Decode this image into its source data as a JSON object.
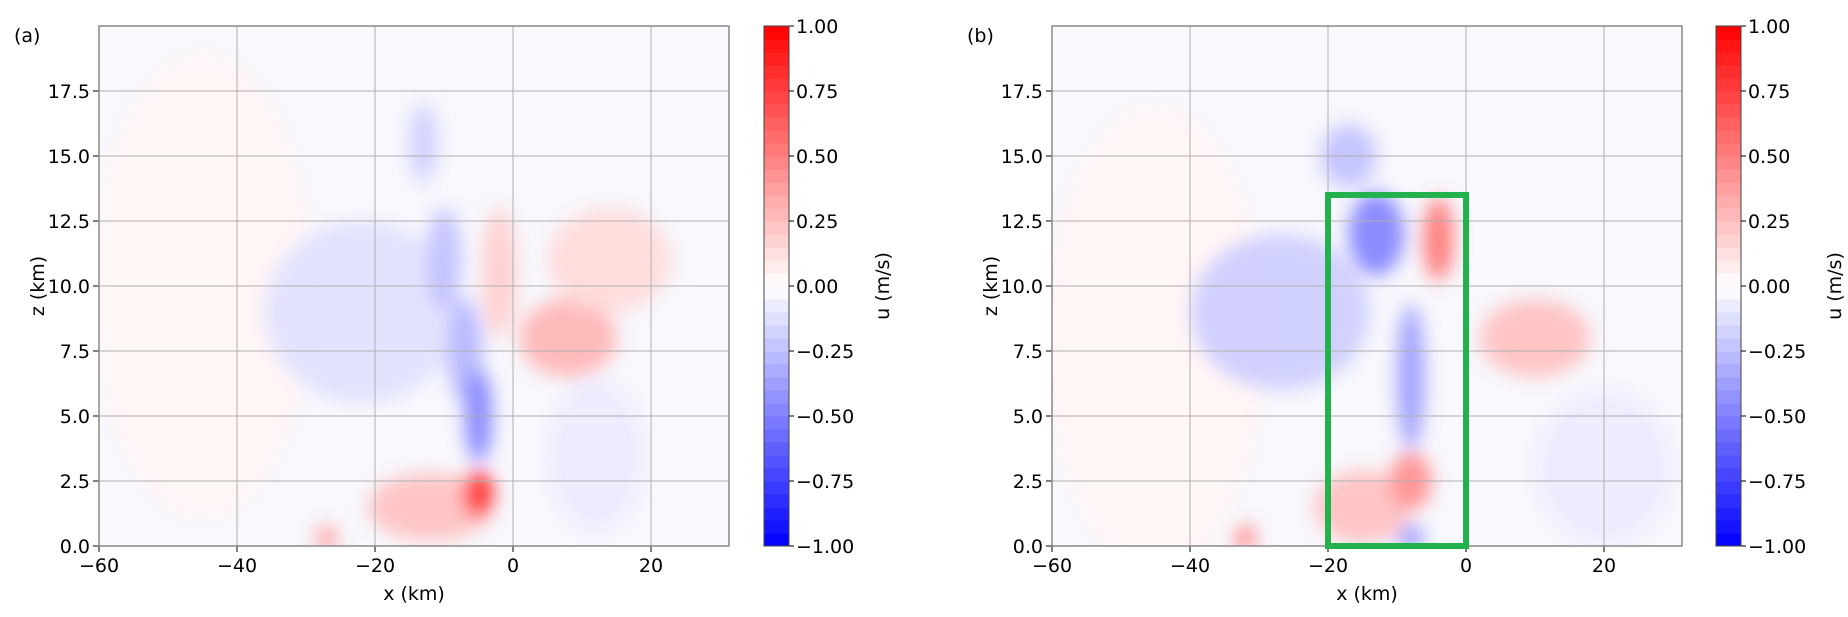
{
  "chart_data": [
    {
      "type": "heatmap",
      "panel_label": "(a)",
      "xlabel": "x (km)",
      "ylabel": "z (km)",
      "xlim": [
        -60,
        31.3
      ],
      "ylim": [
        0,
        20
      ],
      "xticks": [
        "-60",
        "-40",
        "-20",
        "0",
        "20"
      ],
      "yticks": [
        "0.0",
        "2.5",
        "5.0",
        "7.5",
        "10.0",
        "12.5",
        "15.0",
        "17.5"
      ],
      "grid": true,
      "colormap": "bwr",
      "colorbar": {
        "label": "u (m/s)",
        "range": [
          -1,
          1
        ],
        "ticks": [
          "-1.00",
          "-0.75",
          "-0.50",
          "-0.25",
          "0.00",
          "0.25",
          "0.50",
          "0.75",
          "1.00"
        ]
      },
      "features": [
        {
          "x": -45,
          "z": 10,
          "rx": 16,
          "rz": 9,
          "u": 0.04
        },
        {
          "x": -22,
          "z": 9,
          "rx": 14,
          "rz": 3.5,
          "u": -0.12
        },
        {
          "x": 12,
          "z": 3.5,
          "rx": 7,
          "rz": 3,
          "u": -0.08
        },
        {
          "x": -12,
          "z": 1.5,
          "rx": 9,
          "rz": 1.3,
          "u": 0.25
        },
        {
          "x": 8,
          "z": 8,
          "rx": 7,
          "rz": 1.5,
          "u": 0.3
        },
        {
          "x": 14,
          "z": 11,
          "rx": 9,
          "rz": 2,
          "u": 0.15
        },
        {
          "x": -2,
          "z": 10.5,
          "rx": 2.5,
          "rz": 2.5,
          "u": 0.2
        },
        {
          "x": -10,
          "z": 11,
          "rx": 2.5,
          "rz": 2,
          "u": -0.25
        },
        {
          "x": -7,
          "z": 7.5,
          "rx": 2.5,
          "rz": 2,
          "u": -0.3
        },
        {
          "x": -5,
          "z": 5,
          "rx": 2,
          "rz": 1.8,
          "u": -0.5
        },
        {
          "x": -13,
          "z": 15.5,
          "rx": 2,
          "rz": 1.5,
          "u": -0.2
        },
        {
          "x": -5,
          "z": 2,
          "rx": 2.2,
          "rz": 0.9,
          "u": 0.85
        },
        {
          "x": -27,
          "z": 0.3,
          "rx": 1.5,
          "rz": 0.5,
          "u": 0.4
        }
      ]
    },
    {
      "type": "heatmap",
      "panel_label": "(b)",
      "xlabel": "x (km)",
      "ylabel": "z (km)",
      "xlim": [
        -60,
        31.3
      ],
      "ylim": [
        0,
        20
      ],
      "xticks": [
        "-60",
        "-40",
        "-20",
        "0",
        "20"
      ],
      "yticks": [
        "0.0",
        "2.5",
        "5.0",
        "7.5",
        "10.0",
        "12.5",
        "15.0",
        "17.5"
      ],
      "grid": true,
      "colormap": "bwr",
      "colorbar": {
        "label": "u (m/s)",
        "range": [
          -1,
          1
        ],
        "ticks": [
          "-1.00",
          "-0.75",
          "-0.50",
          "-0.25",
          "0.00",
          "0.25",
          "0.50",
          "0.75",
          "1.00"
        ]
      },
      "highlight_box": {
        "x": [
          -20,
          0
        ],
        "z": [
          0,
          13.5
        ],
        "color": "#22b14c"
      },
      "features": [
        {
          "x": -45,
          "z": 8,
          "rx": 16,
          "rz": 9,
          "u": 0.04
        },
        {
          "x": -27,
          "z": 9,
          "rx": 13,
          "rz": 3,
          "u": -0.2
        },
        {
          "x": 20,
          "z": 3,
          "rx": 10,
          "rz": 3,
          "u": -0.08
        },
        {
          "x": -15,
          "z": 1.5,
          "rx": 7,
          "rz": 1.4,
          "u": 0.25
        },
        {
          "x": 10,
          "z": 8,
          "rx": 8,
          "rz": 1.5,
          "u": 0.25
        },
        {
          "x": -13,
          "z": 12,
          "rx": 4,
          "rz": 1.6,
          "u": -0.5
        },
        {
          "x": -4,
          "z": 11.8,
          "rx": 2.2,
          "rz": 1.6,
          "u": 0.55
        },
        {
          "x": -8,
          "z": 6.5,
          "rx": 2,
          "rz": 2.8,
          "u": -0.4
        },
        {
          "x": -8,
          "z": 2.5,
          "rx": 3,
          "rz": 1.1,
          "u": 0.45
        },
        {
          "x": -32,
          "z": 0.3,
          "rx": 1.5,
          "rz": 0.5,
          "u": 0.5
        },
        {
          "x": -8,
          "z": 0.3,
          "rx": 2,
          "rz": 0.5,
          "u": -0.4
        },
        {
          "x": -17,
          "z": 15,
          "rx": 4,
          "rz": 1.2,
          "u": -0.25
        }
      ]
    }
  ]
}
